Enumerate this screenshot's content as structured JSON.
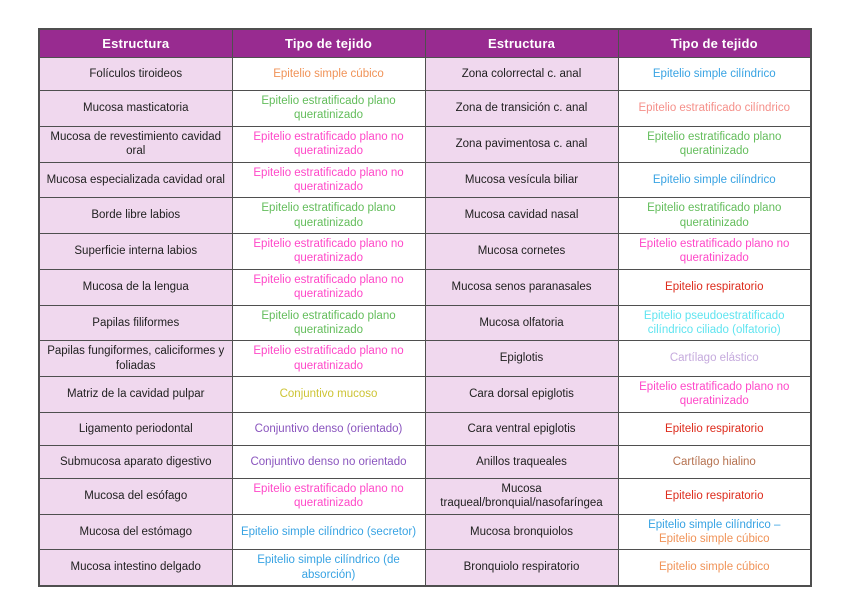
{
  "table": {
    "headers": [
      "Estructura",
      "Tipo de tejido",
      "Estructura",
      "Tipo de tejido"
    ],
    "colors": {
      "header_bg": "#982B90",
      "header_text": "#FFFFFF",
      "structure_bg": "#F0D8EE",
      "tissue_bg": "#FFFFFF",
      "structure_text": "#212121",
      "grid": "#4F4F4F",
      "orange": "#F09358",
      "green": "#63BD5B",
      "pink": "#FF47C8",
      "olive": "#CDC435",
      "purple": "#8A55BE",
      "blue": "#38A3E3",
      "salmon": "#F5908A",
      "red": "#DD2B1C",
      "cyan": "#5FE4F0",
      "lavender": "#C5AADD",
      "brown": "#B5714F"
    },
    "rows": [
      {
        "left_structure": "Folículos tiroideos",
        "left_tissue": [
          {
            "text": "Epitelio simple cúbico",
            "color": "orange"
          }
        ],
        "right_structure": "Zona colorrectal c. anal",
        "right_tissue": [
          {
            "text": "Epitelio simple cilíndrico",
            "color": "blue"
          }
        ]
      },
      {
        "left_structure": "Mucosa masticatoria",
        "left_tissue": [
          {
            "text": "Epitelio estratificado plano queratinizado",
            "color": "green"
          }
        ],
        "right_structure": "Zona de transición c. anal",
        "right_tissue": [
          {
            "text": "Epitelio estratificado cilíndrico",
            "color": "salmon"
          }
        ]
      },
      {
        "left_structure": "Mucosa de revestimiento cavidad oral",
        "left_tissue": [
          {
            "text": "Epitelio estratificado plano no queratinizado",
            "color": "pink"
          }
        ],
        "right_structure": "Zona pavimentosa c. anal",
        "right_tissue": [
          {
            "text": "Epitelio estratificado plano queratinizado",
            "color": "green"
          }
        ]
      },
      {
        "left_structure": "Mucosa especializada cavidad oral",
        "left_tissue": [
          {
            "text": "Epitelio estratificado plano no queratinizado",
            "color": "pink"
          }
        ],
        "right_structure": "Mucosa vesícula biliar",
        "right_tissue": [
          {
            "text": "Epitelio simple cilíndrico",
            "color": "blue"
          }
        ]
      },
      {
        "left_structure": "Borde libre labios",
        "left_tissue": [
          {
            "text": "Epitelio estratificado plano queratinizado",
            "color": "green"
          }
        ],
        "right_structure": "Mucosa cavidad nasal",
        "right_tissue": [
          {
            "text": "Epitelio estratificado plano queratinizado",
            "color": "green"
          }
        ]
      },
      {
        "left_structure": "Superficie interna labios",
        "left_tissue": [
          {
            "text": "Epitelio estratificado plano no queratinizado",
            "color": "pink"
          }
        ],
        "right_structure": "Mucosa cornetes",
        "right_tissue": [
          {
            "text": "Epitelio estratificado plano no queratinizado",
            "color": "pink"
          }
        ]
      },
      {
        "left_structure": "Mucosa de la lengua",
        "left_tissue": [
          {
            "text": "Epitelio estratificado plano no queratinizado",
            "color": "pink"
          }
        ],
        "right_structure": "Mucosa senos paranasales",
        "right_tissue": [
          {
            "text": "Epitelio respiratorio",
            "color": "red"
          }
        ]
      },
      {
        "left_structure": "Papilas filiformes",
        "left_tissue": [
          {
            "text": "Epitelio estratificado plano queratinizado",
            "color": "green"
          }
        ],
        "right_structure": "Mucosa olfatoria",
        "right_tissue": [
          {
            "text": "Epitelio pseudoestratificado cilíndrico ciliado (olfatorio)",
            "color": "cyan"
          }
        ]
      },
      {
        "left_structure": "Papilas fungiformes, caliciformes y foliadas",
        "left_tissue": [
          {
            "text": "Epitelio estratificado plano no queratinizado",
            "color": "pink"
          }
        ],
        "right_structure": "Epiglotis",
        "right_tissue": [
          {
            "text": "Cartílago elástico",
            "color": "lavender"
          }
        ]
      },
      {
        "left_structure": "Matriz de la cavidad pulpar",
        "left_tissue": [
          {
            "text": "Conjuntivo mucoso",
            "color": "olive"
          }
        ],
        "right_structure": "Cara dorsal epiglotis",
        "right_tissue": [
          {
            "text": "Epitelio estratificado plano no queratinizado",
            "color": "pink"
          }
        ]
      },
      {
        "left_structure": "Ligamento periodontal",
        "left_tissue": [
          {
            "text": "Conjuntivo denso (orientado)",
            "color": "purple"
          }
        ],
        "right_structure": "Cara ventral epiglotis",
        "right_tissue": [
          {
            "text": "Epitelio respiratorio",
            "color": "red"
          }
        ]
      },
      {
        "left_structure": "Submucosa aparato digestivo",
        "left_tissue": [
          {
            "text": "Conjuntivo denso no orientado",
            "color": "purple"
          }
        ],
        "right_structure": "Anillos traqueales",
        "right_tissue": [
          {
            "text": "Cartílago hialino",
            "color": "brown"
          }
        ]
      },
      {
        "left_structure": "Mucosa del esófago",
        "left_tissue": [
          {
            "text": "Epitelio estratificado plano no queratinizado",
            "color": "pink"
          }
        ],
        "right_structure": "Mucosa traqueal/bronquial/nasofaríngea",
        "right_tissue": [
          {
            "text": "Epitelio respiratorio",
            "color": "red"
          }
        ]
      },
      {
        "left_structure": "Mucosa del estómago",
        "left_tissue": [
          {
            "text": "Epitelio simple cilíndrico (secretor)",
            "color": "blue"
          }
        ],
        "right_structure": "Mucosa bronquiolos",
        "right_tissue": [
          {
            "text": "Epitelio simple cilíndrico –",
            "color": "blue"
          },
          {
            "text": "Epitelio simple cúbico",
            "color": "orange"
          }
        ]
      },
      {
        "left_structure": "Mucosa intestino delgado",
        "left_tissue": [
          {
            "text": "Epitelio simple cilíndrico (de absorción)",
            "color": "blue"
          }
        ],
        "right_structure": "Bronquiolo respiratorio",
        "right_tissue": [
          {
            "text": "Epitelio simple cúbico",
            "color": "orange"
          }
        ]
      }
    ]
  }
}
